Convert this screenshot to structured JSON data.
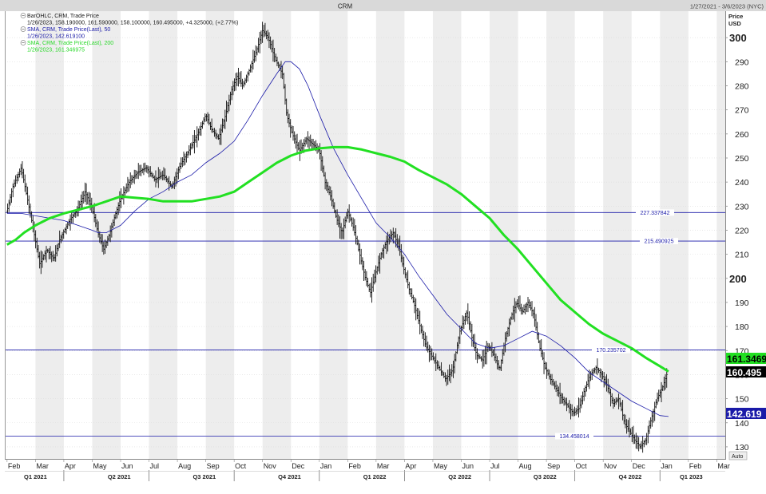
{
  "window": {
    "symbol_title": "CRM",
    "date_range": "1/27/2021 - 3/6/2023 (NYC)"
  },
  "axis_header": {
    "line1": "Price",
    "line2": "USD"
  },
  "legend": [
    {
      "title": "BarOHLC, CRM, Trade Price",
      "values": "1/26/2023, 158.190000, 161.590000, 158.100000, 160.495000, +4.325000, (+2.77%)",
      "color": "#1a1a1a"
    },
    {
      "title": "SMA, CRM, Trade Price(Last),  50",
      "values": "1/26/2023, 142.619100",
      "color": "#1a1aa8"
    },
    {
      "title": "SMA, CRM, Trade Price(Last),  200",
      "values": "1/26/2023, 161.346975",
      "color": "#2bd92b"
    }
  ],
  "auto_button": "Auto",
  "colors": {
    "sma50": "#1a1aa8",
    "sma200": "#22e022",
    "hline": "#1a1aa8",
    "bars": "#111111",
    "band": "#ededed"
  },
  "chart_data": {
    "type": "ohlc",
    "y_range": [
      125,
      311
    ],
    "y_ticks": [
      130,
      140,
      150,
      160,
      170,
      180,
      190,
      200,
      210,
      220,
      230,
      240,
      250,
      260,
      270,
      280,
      290,
      300
    ],
    "y_major_ticks": [
      200,
      300
    ],
    "x_range": [
      -0.08,
      25.3
    ],
    "month_labels": [
      "Feb",
      "Mar",
      "Apr",
      "May",
      "Jun",
      "Jul",
      "Aug",
      "Sep",
      "Oct",
      "Nov",
      "Dec",
      "Jan",
      "Feb",
      "Mar",
      "Apr",
      "May",
      "Jun",
      "Jul",
      "Aug",
      "Sep",
      "Oct",
      "Nov",
      "Dec",
      "Jan",
      "Feb",
      "Mar"
    ],
    "quarters": [
      {
        "label": "Q1 2021",
        "mid": 1.0
      },
      {
        "label": "Q2 2021",
        "mid": 3.95
      },
      {
        "label": "Q3 2021",
        "mid": 6.95
      },
      {
        "label": "Q4 2021",
        "mid": 9.95
      },
      {
        "label": "Q1 2022",
        "mid": 12.95
      },
      {
        "label": "Q2 2022",
        "mid": 15.95
      },
      {
        "label": "Q3 2022",
        "mid": 18.95
      },
      {
        "label": "Q4 2022",
        "mid": 21.95
      },
      {
        "label": "Q1 2023",
        "mid": 24.1
      }
    ],
    "quarter_starts": [
      2,
      5,
      8,
      11,
      14,
      17,
      20,
      23
    ],
    "hlines": [
      {
        "value": 227.337842,
        "label": "227.337842"
      },
      {
        "value": 215.490925,
        "label": "215.490925"
      },
      {
        "value": 170.235702,
        "label": "170.235702"
      },
      {
        "value": 134.458014,
        "label": "134.458014"
      }
    ],
    "last_price_tags": [
      {
        "value": 161.346975,
        "text": "161.3469",
        "bg": "#22e022",
        "fg": "#000000"
      },
      {
        "value": 160.495,
        "text": "160.495",
        "bg": "#000000",
        "fg": "#ffffff"
      },
      {
        "value": 142.6191,
        "text": "142.619",
        "bg": "#1a1aa8",
        "fg": "#ffffff"
      }
    ],
    "price_path": [
      [
        0.0,
        228
      ],
      [
        0.2,
        238
      ],
      [
        0.5,
        246
      ],
      [
        0.7,
        234
      ],
      [
        0.9,
        222
      ],
      [
        1.15,
        206
      ],
      [
        1.4,
        212
      ],
      [
        1.65,
        208
      ],
      [
        1.85,
        216
      ],
      [
        2.2,
        224
      ],
      [
        2.5,
        229
      ],
      [
        2.75,
        236
      ],
      [
        3.0,
        229
      ],
      [
        3.2,
        219
      ],
      [
        3.4,
        212
      ],
      [
        3.6,
        218
      ],
      [
        3.8,
        226
      ],
      [
        4.0,
        233
      ],
      [
        4.3,
        240
      ],
      [
        4.6,
        244
      ],
      [
        4.9,
        246
      ],
      [
        5.2,
        241
      ],
      [
        5.5,
        243
      ],
      [
        5.8,
        238
      ],
      [
        6.1,
        247
      ],
      [
        6.4,
        253
      ],
      [
        6.8,
        262
      ],
      [
        7.0,
        268
      ],
      [
        7.2,
        262
      ],
      [
        7.45,
        258
      ],
      [
        7.7,
        268
      ],
      [
        7.9,
        278
      ],
      [
        8.1,
        284
      ],
      [
        8.3,
        280
      ],
      [
        8.55,
        287
      ],
      [
        8.8,
        295
      ],
      [
        9.0,
        303
      ],
      [
        9.2,
        300
      ],
      [
        9.45,
        291
      ],
      [
        9.7,
        285
      ],
      [
        9.85,
        268
      ],
      [
        10.05,
        260
      ],
      [
        10.3,
        253
      ],
      [
        10.55,
        258
      ],
      [
        10.75,
        256
      ],
      [
        11.0,
        253
      ],
      [
        11.2,
        240
      ],
      [
        11.4,
        234
      ],
      [
        11.6,
        225
      ],
      [
        11.8,
        219
      ],
      [
        12.0,
        228
      ],
      [
        12.2,
        221
      ],
      [
        12.4,
        211
      ],
      [
        12.6,
        201
      ],
      [
        12.8,
        194
      ],
      [
        13.0,
        203
      ],
      [
        13.2,
        211
      ],
      [
        13.4,
        216
      ],
      [
        13.6,
        219
      ],
      [
        13.8,
        213
      ],
      [
        13.95,
        205
      ],
      [
        14.15,
        196
      ],
      [
        14.35,
        189
      ],
      [
        14.55,
        180
      ],
      [
        14.75,
        172
      ],
      [
        14.95,
        168
      ],
      [
        15.2,
        163
      ],
      [
        15.45,
        158
      ],
      [
        15.7,
        162
      ],
      [
        15.95,
        178
      ],
      [
        16.2,
        186
      ],
      [
        16.4,
        174
      ],
      [
        16.55,
        168
      ],
      [
        16.75,
        166
      ],
      [
        16.95,
        172
      ],
      [
        17.15,
        168
      ],
      [
        17.35,
        162
      ],
      [
        17.55,
        175
      ],
      [
        17.75,
        184
      ],
      [
        17.95,
        190
      ],
      [
        18.15,
        186
      ],
      [
        18.35,
        190
      ],
      [
        18.55,
        185
      ],
      [
        18.75,
        172
      ],
      [
        18.95,
        163
      ],
      [
        19.15,
        158
      ],
      [
        19.35,
        154
      ],
      [
        19.55,
        150
      ],
      [
        19.75,
        147
      ],
      [
        19.95,
        144
      ],
      [
        20.15,
        146
      ],
      [
        20.35,
        154
      ],
      [
        20.55,
        160
      ],
      [
        20.75,
        163
      ],
      [
        20.95,
        160
      ],
      [
        21.15,
        155
      ],
      [
        21.35,
        148
      ],
      [
        21.55,
        150
      ],
      [
        21.75,
        140
      ],
      [
        21.95,
        136
      ],
      [
        22.1,
        133
      ],
      [
        22.3,
        130
      ],
      [
        22.5,
        133
      ],
      [
        22.7,
        142
      ],
      [
        22.9,
        150
      ],
      [
        23.1,
        155
      ],
      [
        23.25,
        160.5
      ]
    ],
    "sma50": [
      [
        0.0,
        227
      ],
      [
        0.5,
        227
      ],
      [
        1.0,
        226
      ],
      [
        1.5,
        225
      ],
      [
        2.0,
        224
      ],
      [
        2.5,
        222
      ],
      [
        3.0,
        220
      ],
      [
        3.2,
        219
      ],
      [
        3.5,
        219
      ],
      [
        4.0,
        222
      ],
      [
        4.5,
        228
      ],
      [
        5.0,
        233
      ],
      [
        5.5,
        236
      ],
      [
        6.0,
        240
      ],
      [
        6.5,
        243
      ],
      [
        7.0,
        248
      ],
      [
        7.5,
        252
      ],
      [
        8.0,
        257
      ],
      [
        8.5,
        266
      ],
      [
        9.0,
        276
      ],
      [
        9.5,
        285
      ],
      [
        9.8,
        290
      ],
      [
        10.0,
        290
      ],
      [
        10.3,
        287
      ],
      [
        10.6,
        280
      ],
      [
        11.0,
        268
      ],
      [
        11.5,
        254
      ],
      [
        12.0,
        243
      ],
      [
        12.5,
        233
      ],
      [
        13.0,
        223
      ],
      [
        13.5,
        217
      ],
      [
        14.0,
        210
      ],
      [
        14.5,
        201
      ],
      [
        15.0,
        193
      ],
      [
        15.5,
        185
      ],
      [
        16.0,
        179
      ],
      [
        16.5,
        173
      ],
      [
        17.0,
        171
      ],
      [
        17.5,
        172
      ],
      [
        18.0,
        175
      ],
      [
        18.5,
        178
      ],
      [
        19.0,
        176
      ],
      [
        19.5,
        172
      ],
      [
        20.0,
        167
      ],
      [
        20.5,
        161
      ],
      [
        21.0,
        157
      ],
      [
        21.5,
        153
      ],
      [
        22.0,
        149
      ],
      [
        22.5,
        146
      ],
      [
        23.0,
        143
      ],
      [
        23.3,
        142.6
      ]
    ],
    "sma200": [
      [
        0.0,
        214
      ],
      [
        0.3,
        216
      ],
      [
        0.6,
        219
      ],
      [
        1.0,
        222
      ],
      [
        1.5,
        225
      ],
      [
        2.0,
        227
      ],
      [
        2.5,
        228.5
      ],
      [
        3.0,
        230
      ],
      [
        3.5,
        232
      ],
      [
        4.0,
        234
      ],
      [
        4.5,
        233.5
      ],
      [
        5.0,
        233
      ],
      [
        5.5,
        232
      ],
      [
        6.0,
        232
      ],
      [
        6.5,
        232
      ],
      [
        7.0,
        233
      ],
      [
        7.5,
        234
      ],
      [
        8.0,
        236
      ],
      [
        8.5,
        240
      ],
      [
        9.0,
        244
      ],
      [
        9.5,
        248
      ],
      [
        10.0,
        251
      ],
      [
        10.5,
        253
      ],
      [
        11.0,
        254
      ],
      [
        11.5,
        254.5
      ],
      [
        12.0,
        254.5
      ],
      [
        12.5,
        253.5
      ],
      [
        13.0,
        252
      ],
      [
        13.5,
        250.5
      ],
      [
        14.0,
        248.5
      ],
      [
        14.5,
        245
      ],
      [
        15.0,
        242
      ],
      [
        15.5,
        239
      ],
      [
        16.0,
        235
      ],
      [
        16.5,
        230
      ],
      [
        17.0,
        225
      ],
      [
        17.5,
        218
      ],
      [
        18.0,
        212
      ],
      [
        18.5,
        205
      ],
      [
        19.0,
        198
      ],
      [
        19.5,
        191
      ],
      [
        20.0,
        186
      ],
      [
        20.5,
        181
      ],
      [
        21.0,
        177
      ],
      [
        21.5,
        174
      ],
      [
        22.0,
        171
      ],
      [
        22.5,
        167
      ],
      [
        23.0,
        163.5
      ],
      [
        23.3,
        161.3
      ]
    ]
  }
}
